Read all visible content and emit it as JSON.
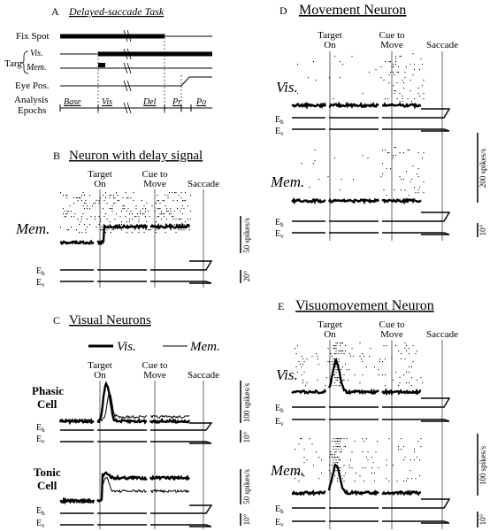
{
  "panels": {
    "A": {
      "letter": "A",
      "title": "Delayed-saccade Task",
      "rows": {
        "fix": "Fix Spot",
        "targ": "Targ",
        "vis": "Vis.",
        "mem": "Mem.",
        "eye": "Eye Pos.",
        "analysis": "Analysis",
        "epochs": "Epochs"
      },
      "epoch_names": [
        "Base",
        "Vis",
        "Del",
        "Pr",
        "Po"
      ]
    },
    "B": {
      "letter": "B",
      "title": "Neuron with delay signal",
      "align": [
        "Target",
        "On",
        "Cue to",
        "Move",
        "Saccade"
      ],
      "cond": "Mem.",
      "scale": "50 spikes/s",
      "eh": "E",
      "ev": "E",
      "eh_sub": "h",
      "ev_sub": "v",
      "deg": "20°"
    },
    "C": {
      "letter": "C",
      "title": "Visual Neurons",
      "legend_vis": "Vis.",
      "legend_mem": "Mem.",
      "align": [
        "Target",
        "On",
        "Cue to",
        "Move",
        "Saccade"
      ],
      "phasic": [
        "Phasic",
        "Cell"
      ],
      "tonic": [
        "Tonic",
        "Cell"
      ],
      "scale1": "100 spikes/s",
      "scale2": "50 spikes/s",
      "deg1": "10°",
      "deg2": "10°",
      "e": "E",
      "h": "h",
      "v": "v"
    },
    "D": {
      "letter": "D",
      "title": "Movement Neuron",
      "align": [
        "Target",
        "On",
        "Cue to",
        "Move",
        "Saccade"
      ],
      "cond1": "Vis.",
      "cond2": "Mem.",
      "scale": "200 spikes/s",
      "deg": "10°",
      "e": "E",
      "h": "h",
      "v": "v"
    },
    "E": {
      "letter": "E",
      "title": "Visuomovement Neuron",
      "align": [
        "Target",
        "On",
        "Cue to",
        "Move",
        "Saccade"
      ],
      "cond1": "Vis.",
      "cond2": "Mem.",
      "scale": "100 spikes/s",
      "deg": "10°",
      "e": "E",
      "h": "h",
      "v": "v"
    }
  }
}
